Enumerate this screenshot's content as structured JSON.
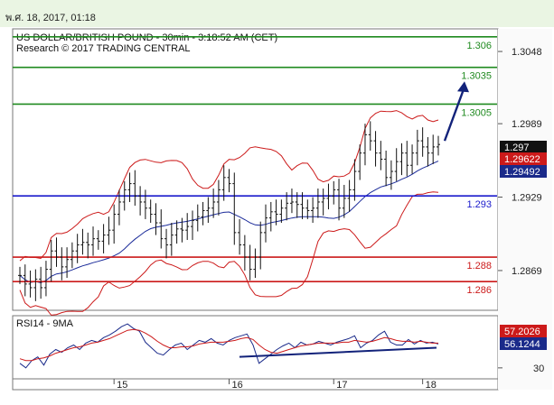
{
  "header": {
    "timestamp": "พ.ศ. 18, 2017, 01:18"
  },
  "chart_data": [
    {
      "type": "line",
      "title": "US DOLLAR/BRITISH POUND - 30min - 3:18:52 AM (CET)",
      "subtitle": "Research © 2017 TRADING CENTRAL",
      "y_ticks": [
        "1.3048",
        "1.2989",
        "1.2929",
        "1.2869"
      ],
      "y_tick_values": [
        1.3048,
        1.2989,
        1.2929,
        1.2869
      ],
      "ylim": [
        1.2838,
        1.3065
      ],
      "x_ticks": [
        "15",
        "16",
        "17",
        "18"
      ],
      "levels": [
        {
          "label": "1.306",
          "value": 1.306,
          "color": "#1f8a1f"
        },
        {
          "label": "1.3035",
          "value": 1.3035,
          "color": "#1f8a1f"
        },
        {
          "label": "1.3005",
          "value": 1.3005,
          "color": "#1f8a1f"
        },
        {
          "label": "1.293",
          "value": 1.293,
          "color": "#1a1acc"
        },
        {
          "label": "1.288",
          "value": 1.288,
          "color": "#cc1a1a"
        },
        {
          "label": "1.286",
          "value": 1.286,
          "color": "#cc1a1a"
        }
      ],
      "price_tags": [
        {
          "label": "1.297",
          "value": 1.297,
          "bg": "#111111"
        },
        {
          "label": "1.29622",
          "value": 1.29622,
          "bg": "#cc1a1a"
        },
        {
          "label": "1.29492",
          "value": 1.29492,
          "bg": "#1a2a8a"
        }
      ],
      "series": [
        {
          "name": "price",
          "color": "#111111",
          "values": [
            1.2865,
            1.2858,
            1.2855,
            1.2862,
            1.2855,
            1.287,
            1.2885,
            1.288,
            1.2872,
            1.2878,
            1.2885,
            1.289,
            1.2892,
            1.289,
            1.2895,
            1.2893,
            1.2898,
            1.2902,
            1.2915,
            1.2925,
            1.2935,
            1.294,
            1.293,
            1.2925,
            1.292,
            1.2915,
            1.2908,
            1.2895,
            1.289,
            1.2898,
            1.2903,
            1.2902,
            1.2905,
            1.291,
            1.2913,
            1.2918,
            1.292,
            1.2925,
            1.2935,
            1.2945,
            1.294,
            1.29,
            1.289,
            1.288,
            1.287,
            1.288,
            1.29,
            1.2912,
            1.2917,
            1.2915,
            1.292,
            1.2924,
            1.2925,
            1.2923,
            1.292,
            1.2918,
            1.292,
            1.2925,
            1.2928,
            1.293,
            1.2935,
            1.292,
            1.2928,
            1.2935,
            1.295,
            1.2965,
            1.298,
            1.2975,
            1.2965,
            1.296,
            1.2945,
            1.295,
            1.2958,
            1.2965,
            1.2955,
            1.2965,
            1.2975,
            1.297,
            1.2965,
            1.297,
            1.2972
          ]
        }
      ],
      "target_arrow": {
        "from": 1.2975,
        "to": 1.3025,
        "color": "#12227a"
      }
    },
    {
      "type": "line",
      "title": "RSI14 - 9MA",
      "y_ticks": [
        "30"
      ],
      "ylim": [
        20,
        85
      ],
      "price_tags": [
        {
          "label": "57.2026",
          "value": 57.2026,
          "bg": "#cc1a1a"
        },
        {
          "label": "56.1244",
          "value": 56.1244,
          "bg": "#1a2a8a"
        }
      ],
      "series": [
        {
          "name": "RSI",
          "color": "#1a2a8a",
          "values": [
            35,
            30,
            38,
            42,
            33,
            45,
            50,
            47,
            52,
            55,
            50,
            57,
            60,
            58,
            63,
            66,
            70,
            75,
            78,
            73,
            70,
            58,
            52,
            46,
            44,
            50,
            55,
            57,
            50,
            55,
            60,
            58,
            62,
            57,
            55,
            60,
            63,
            65,
            67,
            55,
            35,
            40,
            45,
            50,
            54,
            57,
            52,
            58,
            55,
            56,
            59,
            57,
            55,
            58,
            60,
            62,
            65,
            52,
            57,
            60,
            66,
            70,
            58,
            55,
            55,
            61,
            56,
            60,
            57,
            58,
            56
          ]
        },
        {
          "name": "9MA",
          "color": "#cc1a1a",
          "values": [
            40,
            38,
            38,
            40,
            41,
            43,
            46,
            48,
            50,
            52,
            53,
            55,
            57,
            58,
            60,
            62,
            65,
            68,
            71,
            72,
            71,
            68,
            64,
            59,
            55,
            52,
            52,
            53,
            53,
            54,
            56,
            57,
            58,
            58,
            58,
            59,
            60,
            62,
            63,
            61,
            55,
            50,
            47,
            46,
            48,
            50,
            52,
            54,
            55,
            56,
            57,
            57,
            57,
            57,
            58,
            58,
            60,
            59,
            58,
            59,
            61,
            63,
            62,
            60,
            59,
            59,
            58,
            59,
            58,
            57,
            57
          ]
        }
      ],
      "trendline": {
        "from": 42,
        "to": 52,
        "color": "#12227a"
      }
    }
  ]
}
